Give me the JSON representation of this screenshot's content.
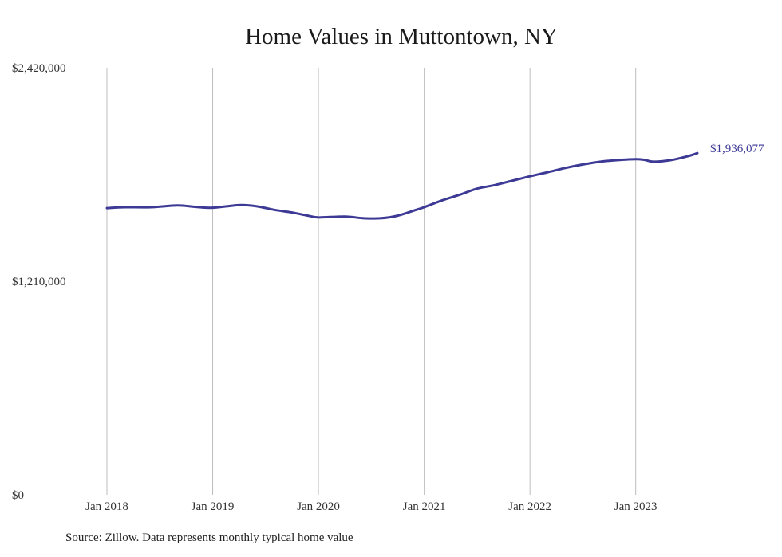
{
  "chart_data": {
    "type": "line",
    "title": "Home Values in Muttontown, NY",
    "xlabel": "",
    "ylabel": "",
    "source": "Source: Zillow. Data represents monthly typical home value",
    "x_ticks": [
      "Jan 2018",
      "Jan 2019",
      "Jan 2020",
      "Jan 2021",
      "Jan 2022",
      "Jan 2023"
    ],
    "y_ticks": [
      {
        "value": 0,
        "label": "$0"
      },
      {
        "value": 1210000,
        "label": "$1,210,000"
      },
      {
        "value": 2420000,
        "label": "$2,420,000"
      }
    ],
    "ylim": [
      0,
      2420000
    ],
    "xlim": [
      "2018-01",
      "2023-08"
    ],
    "grid": "vertical",
    "line_color": "#3d3a96",
    "end_label": "$1,936,077",
    "series": [
      {
        "values": [
          {
            "x": "2018-01",
            "y": 1625000
          },
          {
            "x": "2018-03",
            "y": 1630000
          },
          {
            "x": "2018-06",
            "y": 1630000
          },
          {
            "x": "2018-09",
            "y": 1640000
          },
          {
            "x": "2018-11",
            "y": 1632000
          },
          {
            "x": "2019-01",
            "y": 1627000
          },
          {
            "x": "2019-04",
            "y": 1642000
          },
          {
            "x": "2019-06",
            "y": 1635000
          },
          {
            "x": "2019-08",
            "y": 1615000
          },
          {
            "x": "2019-10",
            "y": 1600000
          },
          {
            "x": "2019-12",
            "y": 1580000
          },
          {
            "x": "2020-01",
            "y": 1572000
          },
          {
            "x": "2020-04",
            "y": 1577000
          },
          {
            "x": "2020-06",
            "y": 1568000
          },
          {
            "x": "2020-08",
            "y": 1567000
          },
          {
            "x": "2020-10",
            "y": 1582000
          },
          {
            "x": "2020-12",
            "y": 1614000
          },
          {
            "x": "2021-01",
            "y": 1630000
          },
          {
            "x": "2021-03",
            "y": 1668000
          },
          {
            "x": "2021-05",
            "y": 1700000
          },
          {
            "x": "2021-07",
            "y": 1735000
          },
          {
            "x": "2021-09",
            "y": 1755000
          },
          {
            "x": "2021-11",
            "y": 1780000
          },
          {
            "x": "2022-01",
            "y": 1805000
          },
          {
            "x": "2022-03",
            "y": 1828000
          },
          {
            "x": "2022-05",
            "y": 1852000
          },
          {
            "x": "2022-07",
            "y": 1872000
          },
          {
            "x": "2022-09",
            "y": 1888000
          },
          {
            "x": "2022-11",
            "y": 1897000
          },
          {
            "x": "2023-01",
            "y": 1902000
          },
          {
            "x": "2023-02",
            "y": 1898000
          },
          {
            "x": "2023-03",
            "y": 1888000
          },
          {
            "x": "2023-05",
            "y": 1897000
          },
          {
            "x": "2023-07",
            "y": 1920000
          },
          {
            "x": "2023-08",
            "y": 1936077
          }
        ]
      }
    ]
  }
}
